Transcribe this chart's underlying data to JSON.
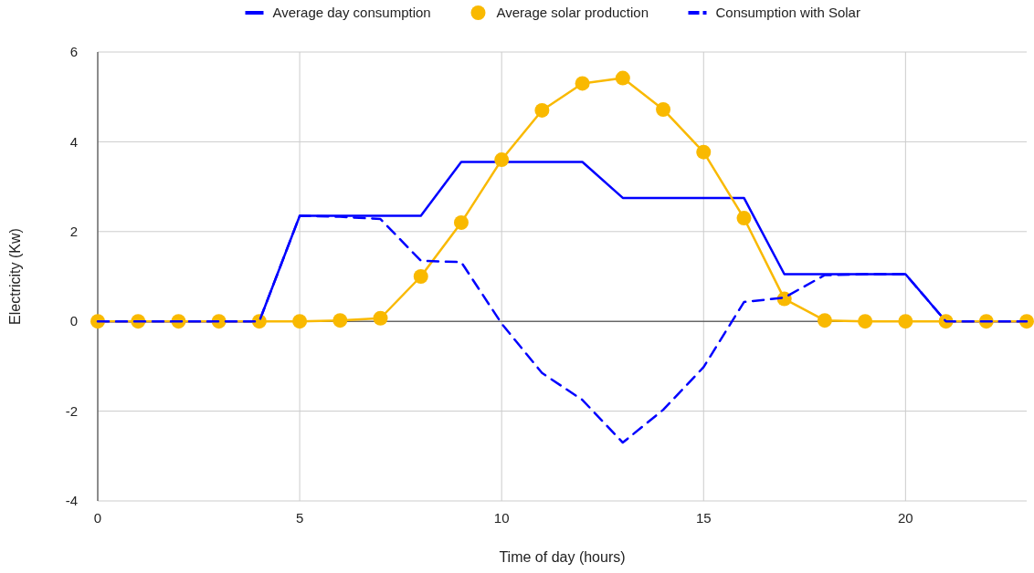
{
  "chart_data": {
    "type": "line",
    "xlabel": "Time of day (hours)",
    "ylabel": "Electricity (Kw)",
    "x": [
      0,
      1,
      2,
      3,
      4,
      5,
      6,
      7,
      8,
      9,
      10,
      11,
      12,
      13,
      14,
      15,
      16,
      17,
      18,
      19,
      20,
      21,
      22,
      23
    ],
    "xlim": [
      0,
      23
    ],
    "xticks": [
      0,
      5,
      10,
      15,
      20
    ],
    "ylim": [
      -4,
      6
    ],
    "yticks": [
      -4,
      -2,
      0,
      2,
      4,
      6
    ],
    "grid": true,
    "legend": "top",
    "series": [
      {
        "name": "Average day consumption",
        "color": "#0000ff",
        "marker": "none",
        "line_style": "solid",
        "values": [
          0,
          0,
          0,
          0,
          0,
          2.35,
          2.35,
          2.35,
          2.35,
          3.55,
          3.55,
          3.55,
          3.55,
          2.75,
          2.75,
          2.75,
          2.75,
          1.05,
          1.05,
          1.05,
          1.05,
          0,
          0,
          0
        ]
      },
      {
        "name": "Average solar production",
        "color": "#f9b900",
        "marker": "circle",
        "line_style": "solid",
        "values": [
          0,
          0,
          0,
          0,
          0,
          0,
          0.02,
          0.07,
          1.0,
          2.2,
          3.6,
          4.7,
          5.3,
          5.42,
          4.72,
          3.77,
          2.3,
          0.5,
          0.02,
          0,
          0,
          0,
          0,
          0
        ]
      },
      {
        "name": "Consumption with Solar",
        "color": "#0000ff",
        "marker": "none",
        "line_style": "dashed",
        "values": [
          0,
          0,
          0,
          0,
          0,
          2.35,
          2.33,
          2.28,
          1.35,
          1.32,
          -0.05,
          -1.15,
          -1.75,
          -2.7,
          -1.97,
          -1.02,
          0.43,
          0.53,
          1.03,
          1.05,
          1.05,
          0,
          0,
          0
        ]
      }
    ]
  }
}
